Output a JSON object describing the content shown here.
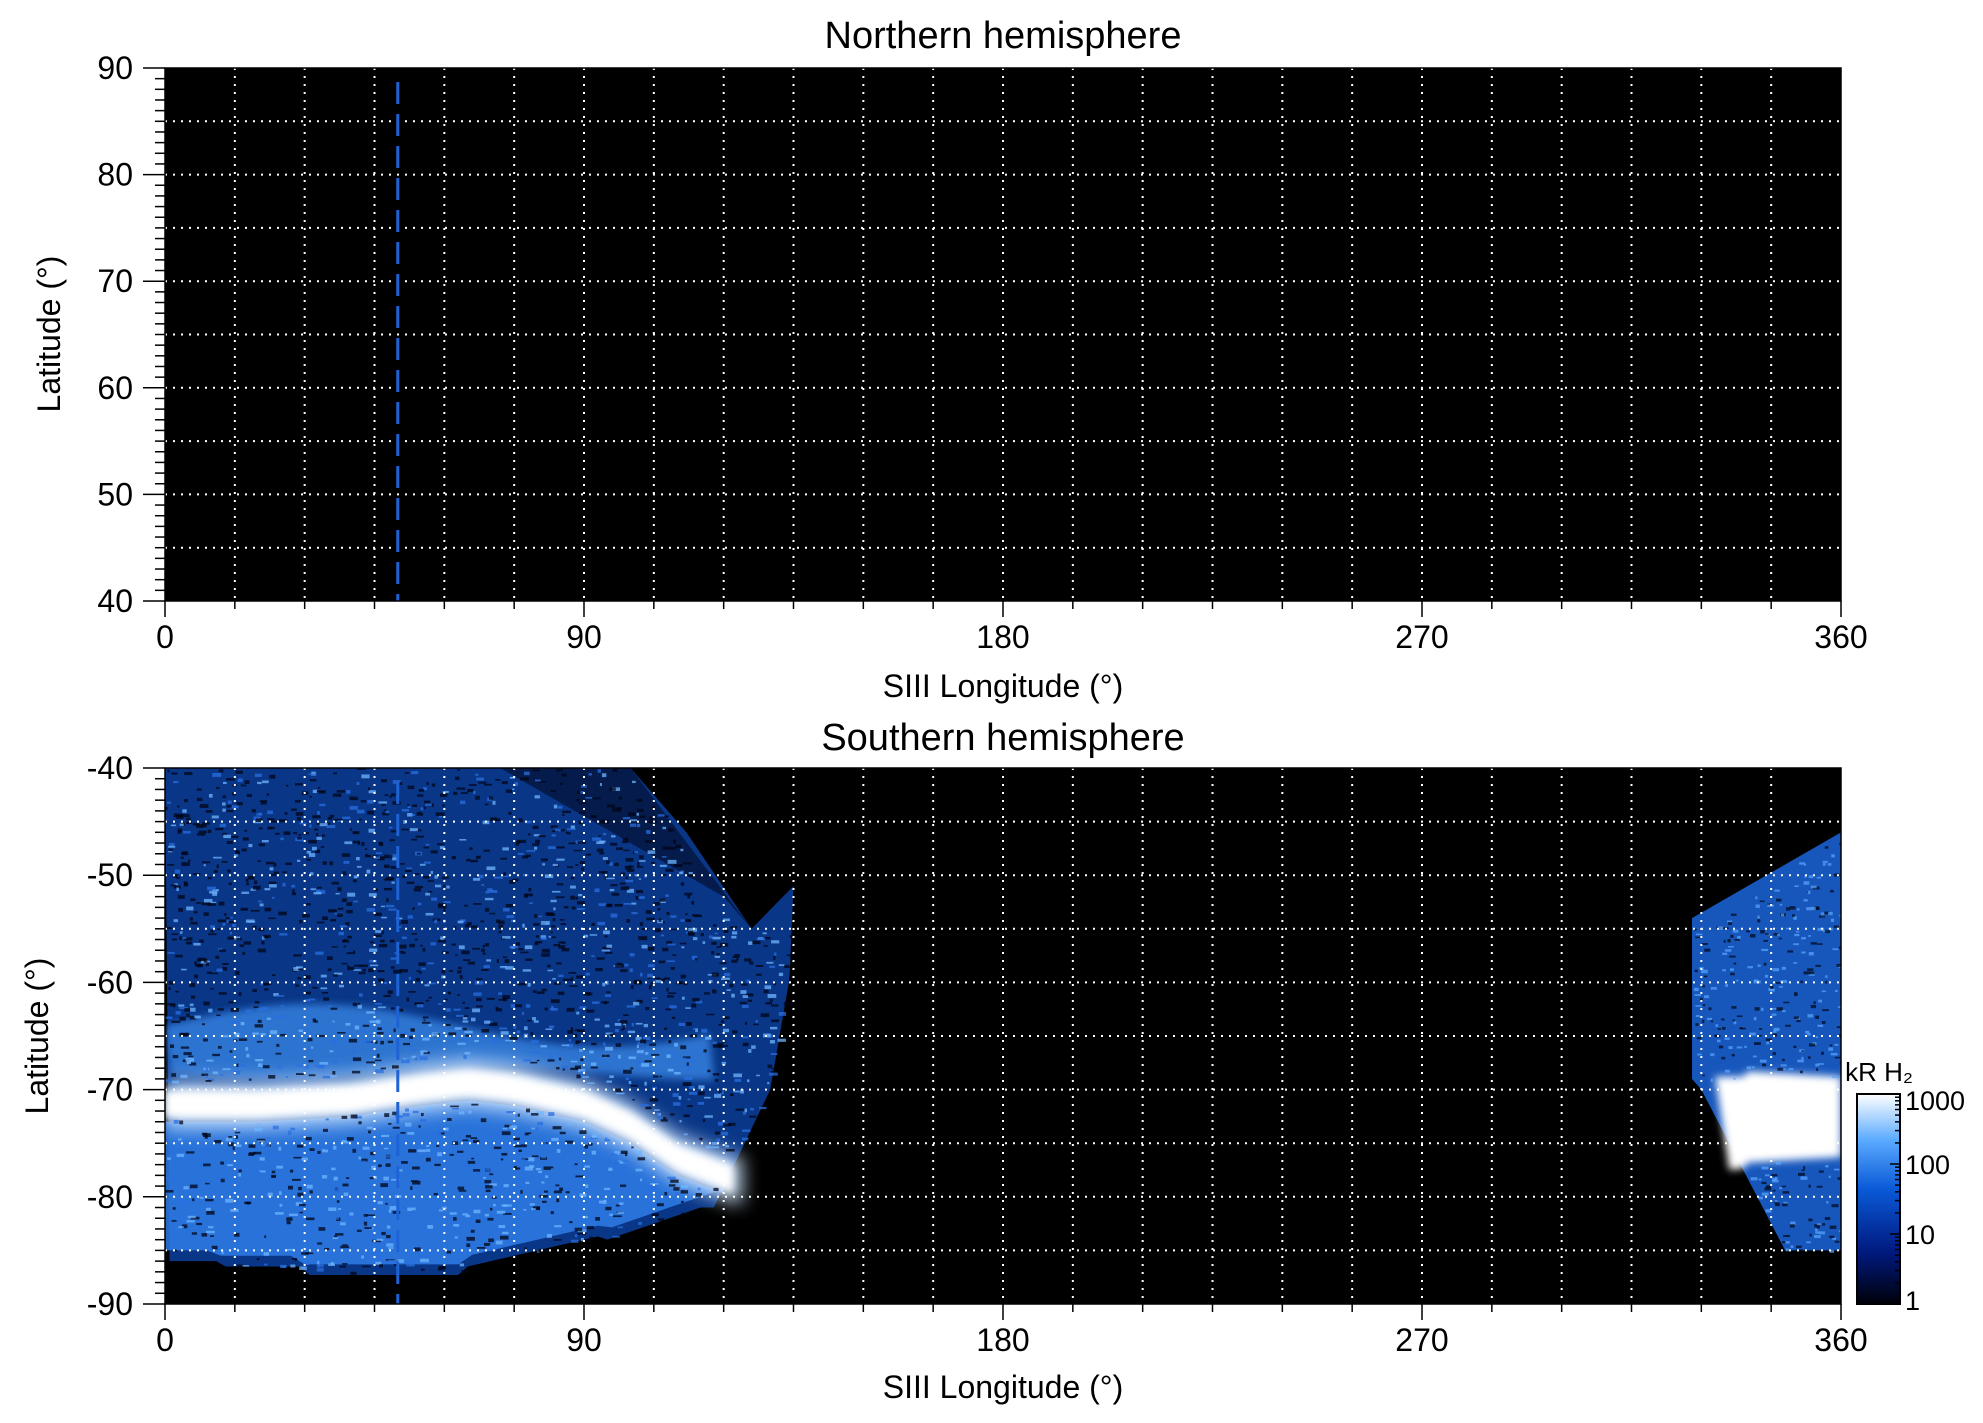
{
  "chart_data": [
    {
      "type": "heatmap",
      "title": "Northern hemisphere",
      "xlabel": "SIII Longitude (°)",
      "ylabel": "Latitude (°)",
      "xlim": [
        0,
        360
      ],
      "ylim": [
        40,
        90
      ],
      "xticks": [
        "0",
        "90",
        "180",
        "270",
        "360"
      ],
      "yticks": [
        "40",
        "50",
        "60",
        "70",
        "80",
        "90"
      ],
      "grid": "dotted white, every 15° longitude and 5° latitude",
      "reference_longitude": 50,
      "emission": "none visible (all black)"
    },
    {
      "type": "heatmap",
      "title": "Southern hemisphere",
      "xlabel": "SIII Longitude (°)",
      "ylabel": "Latitude (°)",
      "xlim": [
        0,
        360
      ],
      "ylim": [
        -90,
        -40
      ],
      "xticks": [
        "0",
        "90",
        "180",
        "270",
        "360"
      ],
      "yticks": [
        "-90",
        "-80",
        "-70",
        "-60",
        "-50",
        "-40"
      ],
      "grid": "dotted white, every 15° longitude and 5° latitude",
      "reference_longitude": 50,
      "coverage": [
        {
          "lon_range": [
            0,
            135
          ],
          "lat_range": [
            -87,
            -40
          ]
        },
        {
          "lon_range": [
            327,
            360
          ],
          "lat_range": [
            -85,
            -46
          ]
        }
      ],
      "main_oval": [
        {
          "lon": 0,
          "lat": -71
        },
        {
          "lon": 20,
          "lat": -71
        },
        {
          "lon": 40,
          "lat": -70.5
        },
        {
          "lon": 55,
          "lat": -69.5
        },
        {
          "lon": 65,
          "lat": -69
        },
        {
          "lon": 75,
          "lat": -69.5
        },
        {
          "lon": 90,
          "lat": -71
        },
        {
          "lon": 100,
          "lat": -73
        },
        {
          "lon": 110,
          "lat": -76
        },
        {
          "lon": 122,
          "lat": -78
        },
        {
          "lon": 340,
          "lat": -72.5
        },
        {
          "lon": 360,
          "lat": -73
        }
      ],
      "colorbar": {
        "label": "kR H₂",
        "scale": "log",
        "range": [
          1,
          1000
        ],
        "ticks": [
          "1",
          "10",
          "100",
          "1000"
        ],
        "colors": [
          "#000008",
          "#001a80",
          "#0a5ad8",
          "#5aaaff",
          "#ffffff"
        ]
      }
    }
  ]
}
